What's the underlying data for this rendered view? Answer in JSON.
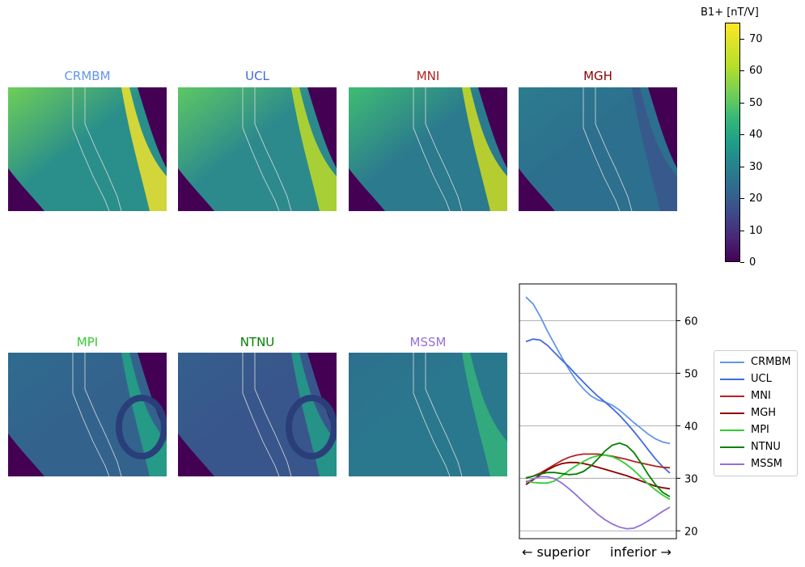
{
  "panels": [
    {
      "name": "CRMBM",
      "color": "#6495ed"
    },
    {
      "name": "UCL",
      "color": "#4169e1"
    },
    {
      "name": "MNI",
      "color": "#b22222"
    },
    {
      "name": "MGH",
      "color": "#8b0000"
    },
    {
      "name": "MPI",
      "color": "#32cd32"
    },
    {
      "name": "NTNU",
      "color": "#008000"
    },
    {
      "name": "MSSM",
      "color": "#9370db"
    }
  ],
  "colorbar": {
    "label": "B1+ [nT/V]",
    "ticks": [
      "70",
      "60",
      "50",
      "40",
      "30",
      "20",
      "10",
      "0"
    ],
    "range": [
      0,
      75
    ],
    "colormap": "viridis"
  },
  "chart_data": {
    "type": "line",
    "xlabel_left": "← superior",
    "xlabel_right": "inferior →",
    "ylim": [
      18.5,
      67
    ],
    "yticks": [
      "60",
      "50",
      "40",
      "30",
      "20"
    ],
    "grid": "horizontal",
    "y_axis_side": "right",
    "legend_position": "right",
    "x": [
      0,
      1,
      2,
      3,
      4,
      5,
      6,
      7,
      8,
      9,
      10,
      11,
      12,
      13,
      14,
      15,
      16,
      17,
      18,
      19,
      20
    ],
    "series": [
      {
        "name": "CRMBM",
        "color": "#6495ed",
        "values": [
          64.5,
          63.2,
          60.8,
          58.0,
          55.5,
          53.0,
          50.7,
          48.6,
          47.0,
          45.7,
          44.9,
          44.5,
          43.9,
          43.0,
          41.8,
          40.6,
          39.5,
          38.4,
          37.5,
          36.9,
          36.6
        ]
      },
      {
        "name": "UCL",
        "color": "#4169e1",
        "values": [
          56.0,
          56.5,
          56.3,
          55.3,
          53.9,
          52.5,
          51.2,
          49.7,
          48.3,
          46.9,
          45.6,
          44.5,
          43.3,
          42.0,
          40.5,
          38.9,
          37.2,
          35.4,
          33.7,
          32.2,
          31.0
        ]
      },
      {
        "name": "MNI",
        "color": "#b22222",
        "values": [
          30.0,
          30.4,
          31.0,
          31.8,
          32.6,
          33.4,
          34.0,
          34.4,
          34.6,
          34.6,
          34.6,
          34.4,
          34.2,
          33.9,
          33.6,
          33.2,
          32.9,
          32.6,
          32.3,
          32.1,
          32.0
        ]
      },
      {
        "name": "MGH",
        "color": "#8b0000",
        "values": [
          28.8,
          29.7,
          30.7,
          31.6,
          32.3,
          32.8,
          33.0,
          33.0,
          32.8,
          32.5,
          32.1,
          31.7,
          31.3,
          30.9,
          30.5,
          30.0,
          29.5,
          29.0,
          28.5,
          28.2,
          28.0
        ]
      },
      {
        "name": "MPI",
        "color": "#32cd32",
        "values": [
          29.5,
          29.2,
          29.1,
          29.1,
          29.5,
          30.5,
          31.5,
          32.4,
          33.2,
          33.9,
          34.3,
          34.4,
          34.1,
          33.5,
          32.6,
          31.5,
          30.2,
          28.9,
          27.8,
          26.8,
          26.0
        ]
      },
      {
        "name": "NTNU",
        "color": "#008000",
        "values": [
          30.1,
          30.4,
          30.8,
          31.1,
          31.1,
          30.9,
          30.7,
          30.8,
          31.3,
          32.3,
          33.7,
          35.2,
          36.3,
          36.7,
          36.2,
          34.9,
          32.9,
          30.7,
          28.8,
          27.3,
          26.5
        ]
      },
      {
        "name": "MSSM",
        "color": "#9370db",
        "values": [
          29.2,
          29.9,
          30.3,
          30.3,
          29.9,
          29.1,
          28.0,
          26.8,
          25.5,
          24.3,
          23.1,
          22.1,
          21.3,
          20.7,
          20.4,
          20.5,
          21.1,
          21.9,
          22.8,
          23.7,
          24.5
        ]
      }
    ]
  }
}
